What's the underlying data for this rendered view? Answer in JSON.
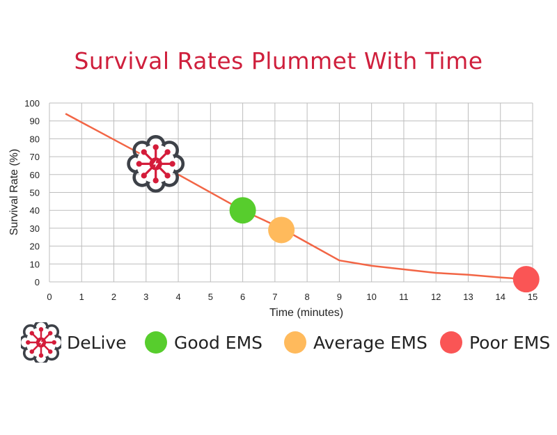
{
  "chart_data": {
    "type": "line",
    "title": "Survival Rates Plummet With Time",
    "xlabel": "Time (minutes)",
    "ylabel": "Survival Rate (%)",
    "xlim": [
      0,
      15
    ],
    "ylim": [
      0,
      100
    ],
    "x_ticks": [
      "0",
      "1",
      "2",
      "3",
      "4",
      "5",
      "6",
      "7",
      "8",
      "9",
      "10",
      "11",
      "12",
      "13",
      "14",
      "15"
    ],
    "y_ticks": [
      "100",
      "90",
      "80",
      "70",
      "60",
      "50",
      "40",
      "30",
      "20",
      "10",
      "0"
    ],
    "grid": true,
    "series": [
      {
        "color": "#f26545",
        "points": [
          [
            0.5,
            94
          ],
          [
            3.3,
            67
          ],
          [
            6,
            40
          ],
          [
            7.2,
            30
          ],
          [
            8,
            22
          ],
          [
            9,
            12
          ],
          [
            10,
            9
          ],
          [
            11,
            7
          ],
          [
            12,
            5
          ],
          [
            13,
            4
          ],
          [
            14,
            2.5
          ],
          [
            14.8,
            1.5
          ]
        ]
      }
    ],
    "markers": [
      {
        "name": "DeLive",
        "x": 3.3,
        "y": 66,
        "icon": "delive-logo-icon",
        "color": "#cf1f3c"
      },
      {
        "name": "Good EMS",
        "x": 6,
        "y": 40,
        "color": "#57cd2d"
      },
      {
        "name": "Average EMS",
        "x": 7.2,
        "y": 29,
        "color": "#ffba5c"
      },
      {
        "name": "Poor EMS",
        "x": 14.8,
        "y": 1.5,
        "color": "#fa5555"
      }
    ],
    "legend": {
      "placement": "bottom",
      "items": [
        {
          "label": "DeLive",
          "icon": "delive-logo-icon"
        },
        {
          "label": "Good EMS",
          "color": "#57cd2d"
        },
        {
          "label": "Average EMS",
          "color": "#ffba5c"
        },
        {
          "label": "Poor EMS",
          "color": "#fa5555"
        }
      ]
    }
  }
}
